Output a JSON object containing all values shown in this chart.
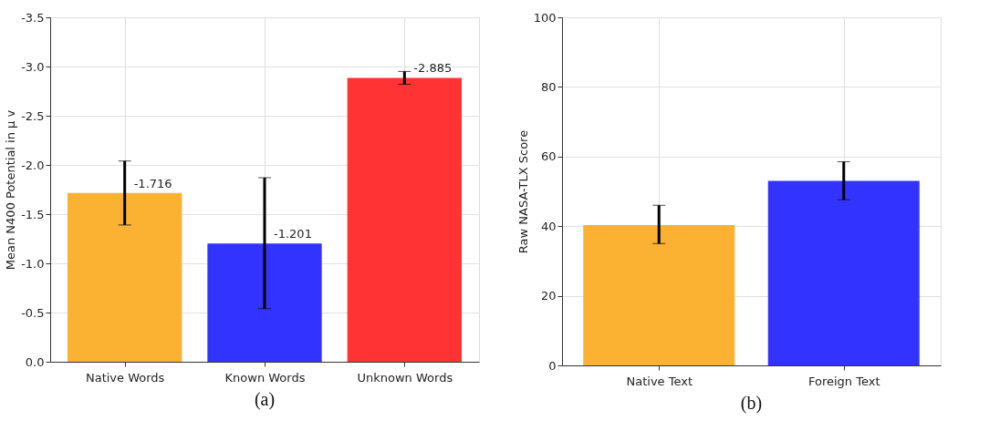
{
  "chart_data": [
    {
      "type": "bar",
      "ylabel": "Mean N400 Potential in µ v",
      "categories": [
        "Native Words",
        "Known Words",
        "Unknown Words"
      ],
      "values": [
        -1.716,
        -1.201,
        -2.885
      ],
      "colors": [
        "#fbb131",
        "#3333ff",
        "#ff3333"
      ],
      "errors": [
        [
          -2.04,
          -1.39
        ],
        [
          -1.87,
          -0.54
        ],
        [
          -2.95,
          -2.82
        ]
      ],
      "data_labels": true,
      "ylim": [
        0,
        -3.5
      ],
      "yticks": [
        {
          "value": 0,
          "label": "0.0"
        },
        {
          "value": -0.5,
          "label": "-0.5"
        },
        {
          "value": -1,
          "label": "-1.0"
        },
        {
          "value": -1.5,
          "label": "-1.5"
        },
        {
          "value": -2,
          "label": "-2.0"
        },
        {
          "value": -2.5,
          "label": "-2.5"
        },
        {
          "value": -3,
          "label": "-3.0"
        },
        {
          "value": -3.5,
          "label": "-3.5"
        }
      ],
      "grid": true,
      "annotations": [
        "(a)"
      ]
    },
    {
      "type": "bar",
      "ylabel": "Raw NASA-TLX Score",
      "categories": [
        "Native Text",
        "Foreign Text"
      ],
      "values": [
        40.3,
        53
      ],
      "colors": [
        "#fbb131",
        "#3333ff"
      ],
      "errors": [
        [
          35,
          46
        ],
        [
          47.6,
          58.5
        ]
      ],
      "ylim": [
        0,
        100
      ],
      "yticks": [
        0,
        20,
        40,
        60,
        80,
        100
      ],
      "grid": true,
      "annotations": [
        "(b)"
      ]
    }
  ]
}
